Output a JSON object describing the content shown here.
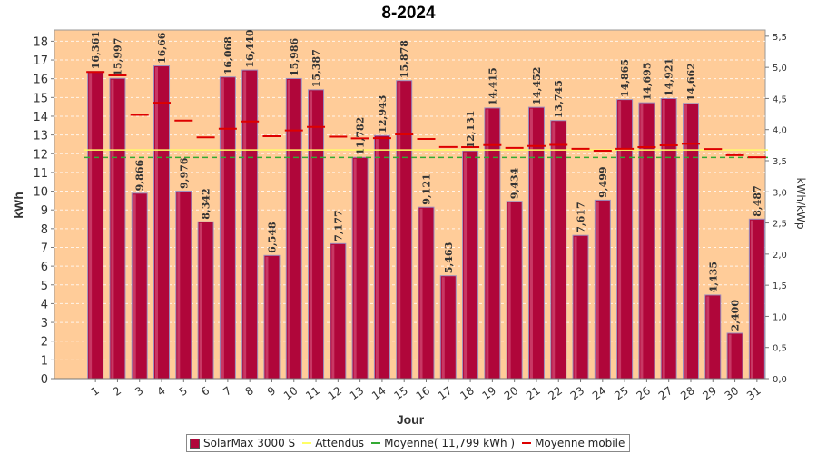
{
  "chart_data": {
    "type": "bar",
    "title": "8-2024",
    "xlabel": "Jour",
    "ylabel": "kWh",
    "y2label": "kWh/kWp",
    "ylim": [
      0,
      18.6
    ],
    "y2lim": [
      0,
      5.6
    ],
    "yticks": [
      0,
      1,
      2,
      3,
      4,
      5,
      6,
      7,
      8,
      9,
      10,
      11,
      12,
      13,
      14,
      15,
      16,
      17,
      18
    ],
    "y2ticks": [
      "0,0",
      "0,5",
      "1,0",
      "1,5",
      "2,0",
      "2,5",
      "3,0",
      "3,5",
      "4,0",
      "4,5",
      "5,0",
      "5,5"
    ],
    "categories": [
      "1",
      "2",
      "3",
      "4",
      "5",
      "6",
      "7",
      "8",
      "9",
      "10",
      "11",
      "12",
      "13",
      "14",
      "15",
      "16",
      "17",
      "18",
      "19",
      "20",
      "21",
      "22",
      "23",
      "24",
      "25",
      "26",
      "27",
      "28",
      "29",
      "30",
      "31"
    ],
    "series": [
      {
        "name": "SolarMax 3000 S",
        "color": "#b0063a",
        "values": [
          16.361,
          15.997,
          9.866,
          16.66,
          9.976,
          8.342,
          16.068,
          16.44,
          6.548,
          15.986,
          15.387,
          7.177,
          11.782,
          12.943,
          15.878,
          9.121,
          5.463,
          12.131,
          14.415,
          9.434,
          14.452,
          13.745,
          7.617,
          9.499,
          14.865,
          14.695,
          14.921,
          14.662,
          4.435,
          2.4,
          8.487
        ],
        "labels": [
          "16,361",
          "15,997",
          "9,866",
          "16,66",
          "9,976",
          "8,342",
          "16,068",
          "16,440",
          "6,548",
          "15,986",
          "15,387",
          "7,177",
          "11,782",
          "12,943",
          "15,878",
          "9,121",
          "5,463",
          "12,131",
          "14,415",
          "9,434",
          "14,452",
          "13,745",
          "7,617",
          "9,499",
          "14,865",
          "14,695",
          "14,921",
          "14,662",
          "4,435",
          "2,400",
          "8,487"
        ]
      },
      {
        "name": "Attendus",
        "color": "#ffff66",
        "values": [
          12.2,
          12.2,
          12.2,
          12.2,
          12.2,
          12.2,
          12.2,
          12.2,
          12.2,
          12.2,
          12.2,
          12.2,
          12.2,
          12.2,
          12.2,
          12.2,
          12.2,
          12.2,
          12.2,
          12.2,
          12.2,
          12.2,
          12.2,
          12.2,
          12.2,
          12.2,
          12.2,
          12.2,
          12.2,
          12.2,
          12.2
        ]
      },
      {
        "name": "Moyenne( 11,799 kWh )",
        "color": "#33aa33",
        "value": 11.799
      },
      {
        "name": "Moyenne mobile",
        "color": "#dd0000",
        "values": [
          16.36,
          16.18,
          14.07,
          14.72,
          13.77,
          12.87,
          13.33,
          13.72,
          12.93,
          13.24,
          13.43,
          12.91,
          12.82,
          12.83,
          13.03,
          12.79,
          12.36,
          12.35,
          12.46,
          12.31,
          12.41,
          12.47,
          12.26,
          12.16,
          12.26,
          12.35,
          12.45,
          12.53,
          12.25,
          11.92,
          11.81
        ]
      }
    ],
    "background": "#ffcc99"
  },
  "legend": {
    "items": [
      {
        "label": "SolarMax 3000 S"
      },
      {
        "label": "Attendus"
      },
      {
        "label": "Moyenne( 11,799 kWh )"
      },
      {
        "label": "Moyenne mobile"
      }
    ]
  }
}
